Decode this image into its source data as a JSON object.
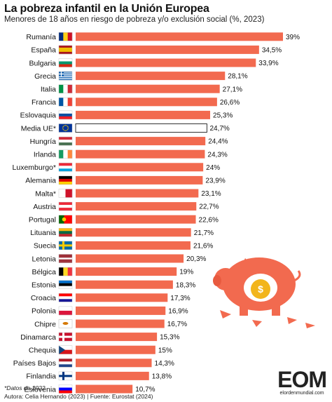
{
  "header": {
    "title": "La pobreza infantil en la Unión Europea",
    "subtitle": "Menores de 18 años en riesgo de pobreza y/o exclusión social (%, 2023)"
  },
  "footer": {
    "note": "*Datos de 2022",
    "credits": "Autora: Celia Hernando (2023) | Fuente: Eurostat (2024)"
  },
  "logo": {
    "main": "EOM",
    "sub": "elordenmundial.com"
  },
  "colors": {
    "bar": "#f26a4f",
    "bar_highlight": "#ffffff",
    "outline": "#333333"
  },
  "chart_data": {
    "type": "bar",
    "orientation": "horizontal",
    "categories": [
      "Rumanía",
      "España",
      "Bulgaria",
      "Grecia",
      "Italia",
      "Francia",
      "Eslovaquia",
      "Media UE*",
      "Hungría",
      "Irlanda",
      "Luxemburgo*",
      "Alemania",
      "Malta*",
      "Austria",
      "Portugal",
      "Lituania",
      "Suecia",
      "Letonia",
      "Bélgica",
      "Estonia",
      "Croacia",
      "Polonia",
      "Chipre",
      "Dinamarca",
      "Chequia",
      "Países Bajos",
      "Finlandia",
      "Eslovenia"
    ],
    "values": [
      39,
      34.5,
      33.9,
      28.1,
      27.1,
      26.6,
      25.3,
      24.7,
      24.4,
      24.3,
      24,
      23.9,
      23.1,
      22.7,
      22.6,
      21.7,
      21.6,
      20.3,
      19,
      18.3,
      17.3,
      16.9,
      16.7,
      15.3,
      15,
      14.3,
      13.8,
      10.7
    ],
    "value_labels": [
      "39%",
      "34,5%",
      "33,9%",
      "28,1%",
      "27,1%",
      "26,6%",
      "25,3%",
      "24,7%",
      "24,4%",
      "24,3%",
      "24%",
      "23,9%",
      "23,1%",
      "22,7%",
      "22,6%",
      "21,7%",
      "21,6%",
      "20,3%",
      "19%",
      "18,3%",
      "17,3%",
      "16,9%",
      "16,7%",
      "15,3%",
      "15%",
      "14,3%",
      "13,8%",
      "10,7%"
    ],
    "highlight": "Media UE*",
    "unit": "%",
    "year": "2023",
    "flags": [
      "romania",
      "spain",
      "bulgaria",
      "greece",
      "italy",
      "france",
      "slovakia",
      "eu",
      "hungary",
      "ireland",
      "luxembourg",
      "germany",
      "malta",
      "austria",
      "portugal",
      "lithuania",
      "sweden",
      "latvia",
      "belgium",
      "estonia",
      "croatia",
      "poland",
      "cyprus",
      "denmark",
      "czechia",
      "netherlands",
      "finland",
      "slovenia"
    ]
  }
}
